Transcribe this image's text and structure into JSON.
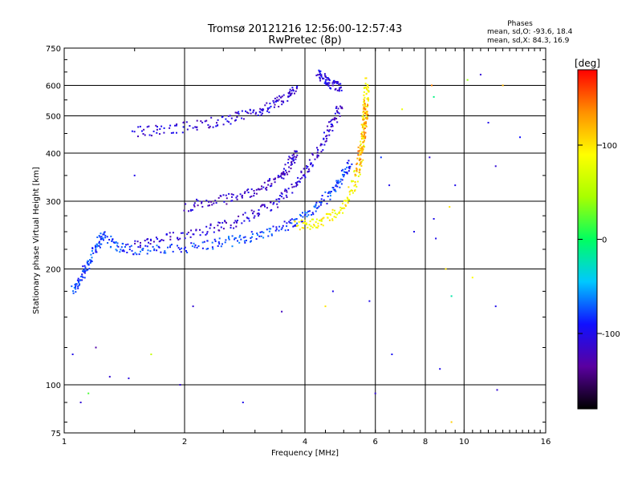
{
  "header": {
    "title_line1": "Tromsø 20121216 12:56:00-12:57:43",
    "title_line2": "RwPretec (8p)",
    "stats_title": "Phases",
    "stats_o": "mean, sd,O: -93.6, 18.4",
    "stats_x": "mean, sd,X: 84.3, 16.9"
  },
  "colorbar": {
    "unit_label": "[deg]",
    "ticks": [
      {
        "value": 100,
        "label": "100"
      },
      {
        "value": 0,
        "label": "0"
      },
      {
        "value": -100,
        "label": "-100"
      }
    ],
    "range": [
      -180,
      180
    ],
    "colors": [
      "#000000",
      "#5a00a0",
      "#1010ff",
      "#00c8ff",
      "#00ff60",
      "#a8ff00",
      "#ffff00",
      "#ff9000",
      "#ff0000"
    ]
  },
  "chart_data": {
    "type": "scatter",
    "xlabel": "Frequency [MHz]",
    "ylabel": "Stationary phase Virtual Height [km]",
    "x_scale": "log",
    "y_scale": "log",
    "xlim": [
      1,
      16
    ],
    "ylim": [
      75,
      750
    ],
    "grid": true,
    "x_ticks": [
      {
        "value": 1,
        "label": "1"
      },
      {
        "value": 2,
        "label": "2"
      },
      {
        "value": 4,
        "label": "4"
      },
      {
        "value": 6,
        "label": "6"
      },
      {
        "value": 8,
        "label": "8"
      },
      {
        "value": 10,
        "label": "10"
      },
      {
        "value": 16,
        "label": "16"
      }
    ],
    "y_ticks": [
      {
        "value": 75,
        "label": "75"
      },
      {
        "value": 100,
        "label": "100"
      },
      {
        "value": 200,
        "label": "200"
      },
      {
        "value": 300,
        "label": "300"
      },
      {
        "value": 400,
        "label": "400"
      },
      {
        "value": 500,
        "label": "500"
      },
      {
        "value": 600,
        "label": "600"
      },
      {
        "value": 750,
        "label": "750"
      }
    ],
    "traces": [
      {
        "phase_deg": -80,
        "points": [
          [
            1.05,
            175
          ],
          [
            1.1,
            190
          ],
          [
            1.15,
            205
          ],
          [
            1.2,
            230
          ],
          [
            1.25,
            245
          ],
          [
            1.35,
            230
          ],
          [
            1.5,
            224
          ],
          [
            1.8,
            224
          ],
          [
            2.2,
            230
          ],
          [
            2.6,
            236
          ],
          [
            3.0,
            244
          ],
          [
            3.5,
            256
          ],
          [
            3.9,
            270
          ],
          [
            4.3,
            290
          ],
          [
            4.7,
            320
          ],
          [
            5.0,
            350
          ],
          [
            5.2,
            380
          ]
        ]
      },
      {
        "phase_deg": -110,
        "points": [
          [
            1.5,
            230
          ],
          [
            1.8,
            240
          ],
          [
            2.2,
            252
          ],
          [
            2.6,
            262
          ],
          [
            3.0,
            278
          ],
          [
            3.4,
            298
          ],
          [
            3.8,
            330
          ],
          [
            4.1,
            370
          ],
          [
            4.4,
            420
          ],
          [
            4.7,
            480
          ],
          [
            4.9,
            530
          ]
        ]
      },
      {
        "phase_deg": -115,
        "points": [
          [
            2.0,
            290
          ],
          [
            2.4,
            300
          ],
          [
            2.8,
            312
          ],
          [
            3.2,
            328
          ],
          [
            3.5,
            350
          ],
          [
            3.7,
            380
          ],
          [
            3.8,
            400
          ]
        ]
      },
      {
        "phase_deg": -110,
        "points": [
          [
            1.5,
            455
          ],
          [
            1.8,
            460
          ],
          [
            2.2,
            475
          ],
          [
            2.6,
            490
          ],
          [
            3.0,
            510
          ],
          [
            3.3,
            530
          ],
          [
            3.6,
            560
          ],
          [
            3.8,
            585
          ]
        ]
      },
      {
        "phase_deg": -105,
        "points": [
          [
            4.3,
            640
          ],
          [
            4.5,
            620
          ],
          [
            4.7,
            600
          ],
          [
            4.9,
            590
          ]
        ]
      },
      {
        "phase_deg": 90,
        "points": [
          [
            3.8,
            260
          ],
          [
            4.2,
            262
          ],
          [
            4.6,
            272
          ],
          [
            5.0,
            290
          ],
          [
            5.3,
            330
          ],
          [
            5.5,
            380
          ],
          [
            5.6,
            440
          ],
          [
            5.65,
            500
          ],
          [
            5.7,
            560
          ],
          [
            5.7,
            620
          ]
        ]
      },
      {
        "phase_deg": 130,
        "points": [
          [
            5.4,
            360
          ],
          [
            5.55,
            420
          ],
          [
            5.65,
            480
          ],
          [
            5.7,
            540
          ]
        ]
      }
    ],
    "scatter_points": [
      {
        "x": 1.05,
        "y": 120,
        "phase_deg": -100
      },
      {
        "x": 1.1,
        "y": 90,
        "phase_deg": -110
      },
      {
        "x": 1.15,
        "y": 95,
        "phase_deg": 20
      },
      {
        "x": 1.2,
        "y": 125,
        "phase_deg": -130
      },
      {
        "x": 1.3,
        "y": 105,
        "phase_deg": -110
      },
      {
        "x": 1.45,
        "y": 104,
        "phase_deg": -105
      },
      {
        "x": 1.5,
        "y": 350,
        "phase_deg": -100
      },
      {
        "x": 1.65,
        "y": 120,
        "phase_deg": 60
      },
      {
        "x": 1.95,
        "y": 100,
        "phase_deg": -110
      },
      {
        "x": 2.1,
        "y": 160,
        "phase_deg": -110
      },
      {
        "x": 2.8,
        "y": 90,
        "phase_deg": -100
      },
      {
        "x": 3.5,
        "y": 155,
        "phase_deg": -120
      },
      {
        "x": 4.5,
        "y": 160,
        "phase_deg": 100
      },
      {
        "x": 4.7,
        "y": 175,
        "phase_deg": -100
      },
      {
        "x": 5.8,
        "y": 165,
        "phase_deg": -100
      },
      {
        "x": 6.0,
        "y": 95,
        "phase_deg": -110
      },
      {
        "x": 6.2,
        "y": 390,
        "phase_deg": -80
      },
      {
        "x": 6.5,
        "y": 330,
        "phase_deg": -100
      },
      {
        "x": 6.6,
        "y": 120,
        "phase_deg": -95
      },
      {
        "x": 7.0,
        "y": 520,
        "phase_deg": 80
      },
      {
        "x": 7.5,
        "y": 250,
        "phase_deg": -100
      },
      {
        "x": 8.2,
        "y": 390,
        "phase_deg": -110
      },
      {
        "x": 8.3,
        "y": 600,
        "phase_deg": 140
      },
      {
        "x": 8.4,
        "y": 270,
        "phase_deg": -100
      },
      {
        "x": 8.4,
        "y": 560,
        "phase_deg": -10
      },
      {
        "x": 8.5,
        "y": 240,
        "phase_deg": -100
      },
      {
        "x": 8.7,
        "y": 110,
        "phase_deg": -100
      },
      {
        "x": 9.0,
        "y": 200,
        "phase_deg": 100
      },
      {
        "x": 9.2,
        "y": 290,
        "phase_deg": 100
      },
      {
        "x": 9.3,
        "y": 80,
        "phase_deg": 110
      },
      {
        "x": 9.3,
        "y": 170,
        "phase_deg": -20
      },
      {
        "x": 9.5,
        "y": 330,
        "phase_deg": -100
      },
      {
        "x": 10.2,
        "y": 620,
        "phase_deg": 40
      },
      {
        "x": 10.5,
        "y": 190,
        "phase_deg": 90
      },
      {
        "x": 11.0,
        "y": 640,
        "phase_deg": -110
      },
      {
        "x": 11.5,
        "y": 480,
        "phase_deg": -100
      },
      {
        "x": 12.0,
        "y": 370,
        "phase_deg": -110
      },
      {
        "x": 12.0,
        "y": 160,
        "phase_deg": -100
      },
      {
        "x": 12.1,
        "y": 97,
        "phase_deg": -110
      },
      {
        "x": 12.5,
        "y": 600,
        "phase_deg": 120
      },
      {
        "x": 13.8,
        "y": 440,
        "phase_deg": -90
      }
    ]
  }
}
